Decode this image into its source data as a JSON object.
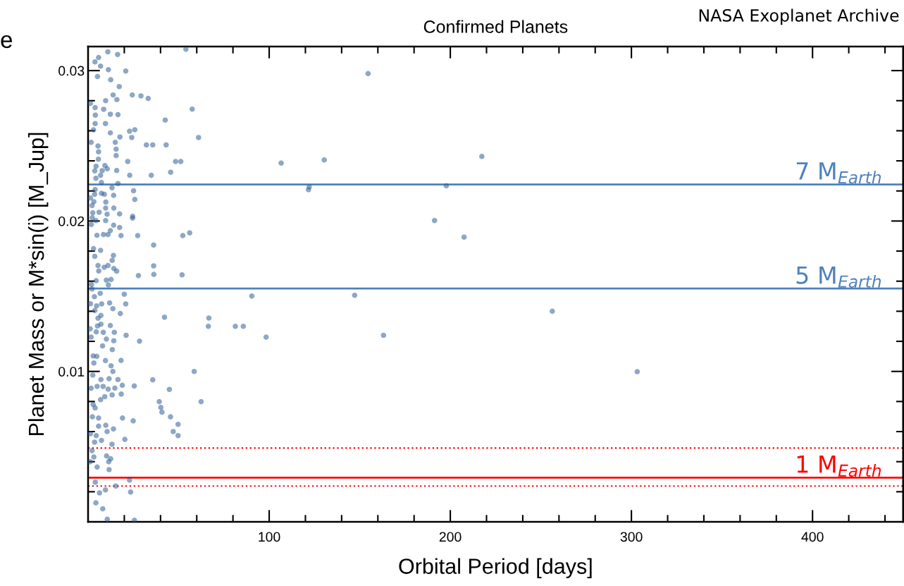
{
  "chart_data": {
    "type": "scatter",
    "title": "Confirmed Planets",
    "xlabel": "Orbital Period [days]",
    "ylabel": "Planet Mass or M*sin(i) [M_Jup]",
    "annotations": [
      "NASA Exoplanet Archive",
      "e"
    ],
    "xlim": [
      0,
      450
    ],
    "ylim": [
      0,
      0.0316
    ],
    "xticks": [
      {
        "value": 20,
        "label": null
      },
      {
        "value": 40,
        "label": null
      },
      {
        "value": 60,
        "label": null
      },
      {
        "value": 80,
        "label": null
      },
      100,
      {
        "value": 120,
        "label": null
      },
      {
        "value": 140,
        "label": null
      },
      {
        "value": 160,
        "label": null
      },
      {
        "value": 180,
        "label": null
      },
      200,
      {
        "value": 220,
        "label": null
      },
      {
        "value": 240,
        "label": null
      },
      {
        "value": 260,
        "label": null
      },
      {
        "value": 280,
        "label": null
      },
      300,
      {
        "value": 320,
        "label": null
      },
      {
        "value": 340,
        "label": null
      },
      {
        "value": 360,
        "label": null
      },
      {
        "value": 380,
        "label": null
      },
      400,
      {
        "value": 420,
        "label": null
      },
      {
        "value": 440,
        "label": null
      }
    ],
    "yticks": [
      {
        "value": 0.002,
        "label": null
      },
      {
        "value": 0.004,
        "label": null
      },
      {
        "value": 0.006,
        "label": null
      },
      {
        "value": 0.008,
        "label": null
      },
      0.01,
      {
        "value": 0.012,
        "label": null
      },
      {
        "value": 0.014,
        "label": null
      },
      {
        "value": 0.016,
        "label": null
      },
      {
        "value": 0.018,
        "label": null
      },
      0.02,
      {
        "value": 0.022,
        "label": null
      },
      {
        "value": 0.024,
        "label": null
      },
      {
        "value": 0.026,
        "label": null
      },
      {
        "value": 0.028,
        "label": null
      },
      0.03
    ],
    "grid": false,
    "marker": "circle",
    "ref_lines": [
      {
        "axis": "y",
        "value": 0.02243,
        "label": "7 M$_{Earth}$",
        "color": "#4f81bd",
        "line_style": "solid"
      },
      {
        "axis": "y",
        "value": 0.01551,
        "label": "5 M$_{Earth}$",
        "color": "#4f81bd",
        "line_style": "solid"
      },
      {
        "axis": "y",
        "value": 0.00491,
        "label": null,
        "color": "#ff0000",
        "line_style": "dotted"
      },
      {
        "axis": "y",
        "value": 0.00294,
        "label": "1 M$_{Earth}$",
        "color": "#ff0000",
        "line_style": "solid"
      },
      {
        "axis": "y",
        "value": 0.00238,
        "label": null,
        "color": "#ff0000",
        "line_style": "dotted"
      }
    ],
    "series": [
      {
        "color": "#2f5f96",
        "x": [
          154.6,
          106.6,
          122.1,
          121.7,
          130.4,
          217.4,
          197.8,
          191.3,
          207.6,
          147.2,
          163.1,
          256.3,
          303.2,
          54,
          10.9,
          16.3,
          5.8,
          3.8,
          6.9,
          11.2,
          20.8,
          5.2,
          12.5,
          17.2,
          13.8,
          24.4,
          29.2,
          33.2,
          15.9,
          9.7,
          1.3,
          3.9,
          8.6,
          57.5,
          12.3,
          16.5,
          4,
          42.6,
          9.6,
          3.9,
          3.0,
          25.8,
          22.9,
          12.3,
          17.6,
          61,
          24.1,
          1.7,
          15,
          32.2,
          35.7,
          43.1,
          5.5,
          15.5,
          5.8,
          15.5,
          5.7,
          21.9,
          48.3,
          51.2,
          9.3,
          4.4,
          10.6,
          15.8,
          7.8,
          3.7,
          45.6,
          23,
          34.9,
          6.9,
          4.3,
          7.4,
          16.5,
          13.2,
          3.9,
          25.1,
          7.4,
          3.6,
          14.1,
          9,
          1.3,
          25.8,
          9.8,
          3.2,
          2.2,
          9.7,
          14.2,
          6.1,
          2.6,
          10.5,
          17.4,
          24.6,
          24.6,
          2.3,
          4.3,
          9.7,
          1.8,
          14.1,
          17.4,
          12.3,
          4.9,
          8.5,
          11,
          18.2,
          27.4,
          52.3,
          56.1,
          36.2,
          3,
          6.9,
          14,
          3.7,
          13.3,
          5.5,
          11,
          8.9,
          36.2,
          14.2,
          15.8,
          5.9,
          27.8,
          36.3,
          51.9,
          4.5,
          10.1,
          12.7,
          1.9,
          11.2,
          2.2,
          6.7,
          20,
          90.4,
          3.5,
          1.3,
          7.5,
          11.9,
          20.8,
          4.7,
          13.7,
          3.7,
          17.8,
          7.1,
          5.5,
          42.2,
          66.7,
          66.4,
          81.3,
          85.7,
          98.3,
          1.2,
          5.2,
          7.1,
          12.3,
          4.5,
          8.4,
          14.5,
          10.1,
          14.2,
          1.7,
          8,
          13.4,
          21,
          28.4,
          2.8,
          4.8,
          18.2,
          9.6,
          12.7,
          3.2,
          13.7,
          58.6,
          2.6,
          7.1,
          11.6,
          16.5,
          35.7,
          1.7,
          5,
          8.3,
          11.1,
          14.8,
          18.9,
          25.5,
          44.9,
          9.2,
          6.9,
          13.3,
          18.3,
          39.3,
          62.4,
          40.2,
          40.8,
          45.5,
          47,
          49.7,
          49.7,
          2.8,
          3.9,
          2.4,
          5.8,
          19,
          24.9,
          9.8,
          5.8,
          14,
          10.5,
          1.3,
          4.5,
          3.6,
          7.4,
          13.2,
          20.3,
          2.2,
          10.2,
          12.5,
          3.2,
          11.4,
          5,
          11.6,
          1.2,
          22.9,
          4,
          15.3,
          9.6,
          6.3,
          23.5,
          4.3,
          8.1,
          10.6,
          25.6
        ],
        "values": [
          0.0298,
          0.02385,
          0.02227,
          0.02208,
          0.02406,
          0.02429,
          0.02234,
          0.02003,
          0.01893,
          0.01506,
          0.0124,
          0.014,
          0.00998,
          0.03142,
          0.03125,
          0.03107,
          0.03087,
          0.03058,
          0.0303,
          0.03006,
          0.02997,
          0.02961,
          0.02939,
          0.02894,
          0.02838,
          0.02838,
          0.02832,
          0.02815,
          0.02807,
          0.028,
          0.02782,
          0.02754,
          0.02743,
          0.02744,
          0.0271,
          0.02707,
          0.02704,
          0.02671,
          0.02648,
          0.02648,
          0.02606,
          0.02607,
          0.02597,
          0.02586,
          0.02559,
          0.02555,
          0.02555,
          0.02523,
          0.02523,
          0.02506,
          0.02506,
          0.02506,
          0.02499,
          0.02478,
          0.0246,
          0.02435,
          0.02411,
          0.02396,
          0.02396,
          0.02396,
          0.02369,
          0.02364,
          0.02347,
          0.02336,
          0.02335,
          0.02333,
          0.02324,
          0.02304,
          0.02304,
          0.02304,
          0.02284,
          0.02256,
          0.02249,
          0.02221,
          0.02209,
          0.02201,
          0.02184,
          0.02178,
          0.02171,
          0.02178,
          0.02153,
          0.02143,
          0.02126,
          0.02128,
          0.02103,
          0.02086,
          0.02086,
          0.02058,
          0.02055,
          0.02045,
          0.02047,
          0.02031,
          0.02019,
          0.02022,
          0.02003,
          0.02003,
          0.01977,
          0.01972,
          0.01957,
          0.01936,
          0.01905,
          0.0191,
          0.0191,
          0.01903,
          0.01903,
          0.01903,
          0.01921,
          0.0184,
          0.01816,
          0.01805,
          0.01771,
          0.01765,
          0.01738,
          0.01704,
          0.01704,
          0.01692,
          0.01702,
          0.01684,
          0.01667,
          0.01668,
          0.01637,
          0.01645,
          0.01642,
          0.01603,
          0.01607,
          0.01611,
          0.01578,
          0.01575,
          0.01548,
          0.01519,
          0.01513,
          0.01501,
          0.01497,
          0.0145,
          0.01449,
          0.01455,
          0.01449,
          0.01435,
          0.01417,
          0.01405,
          0.01385,
          0.01372,
          0.01354,
          0.0136,
          0.01355,
          0.013,
          0.013,
          0.013,
          0.01228,
          0.01283,
          0.01302,
          0.01314,
          0.01305,
          0.01263,
          0.0126,
          0.0126,
          0.01215,
          0.01204,
          0.01228,
          0.0117,
          0.01145,
          0.0124,
          0.01201,
          0.01103,
          0.011,
          0.01073,
          0.01072,
          0.01037,
          0.01056,
          0.01,
          0.01,
          0.00975,
          0.00946,
          0.00952,
          0.00946,
          0.00944,
          0.00888,
          0.009,
          0.009,
          0.00882,
          0.00889,
          0.00908,
          0.00903,
          0.0088,
          0.00832,
          0.00812,
          0.00844,
          0.00849,
          0.00799,
          0.00799,
          0.0076,
          0.00729,
          0.00698,
          0.006,
          0.00648,
          0.00573,
          0.0078,
          0.00757,
          0.00698,
          0.0069,
          0.0069,
          0.00671,
          0.00642,
          0.00636,
          0.00618,
          0.006,
          0.00586,
          0.00573,
          0.0053,
          0.00541,
          0.00516,
          0.00548,
          0.00473,
          0.00438,
          0.00419,
          0.00431,
          0.00399,
          0.00364,
          0.00347,
          0.00399,
          0.00277,
          0.00263,
          0.00238,
          0.00212,
          0.00192,
          0.00198,
          0.00126,
          0.00087,
          0.00017,
          0.0001
        ]
      }
    ]
  }
}
